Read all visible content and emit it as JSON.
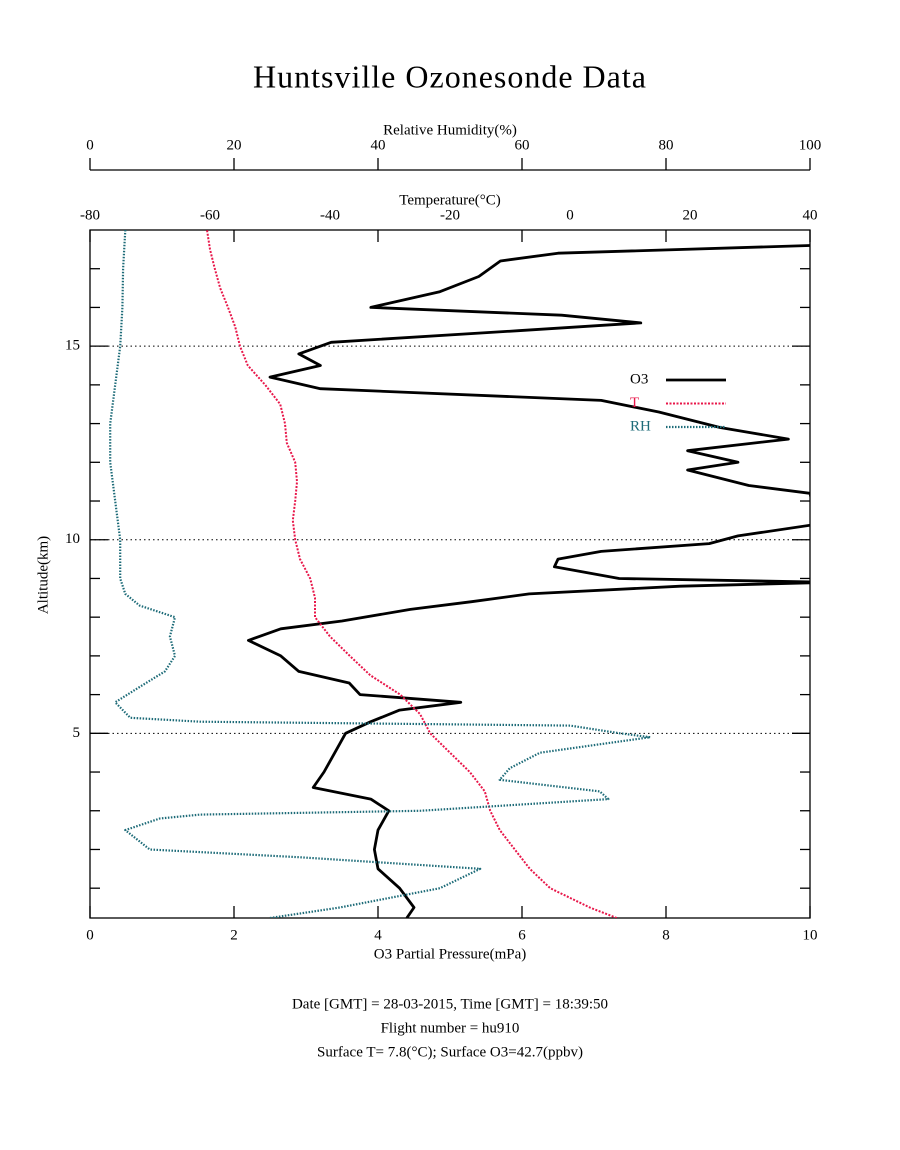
{
  "chart_data": {
    "type": "line",
    "title": "Huntsville Ozonesonde Data",
    "xlabel": "O3 Partial Pressure(mPa)",
    "x2label": "Temperature(°C)",
    "x3label": "Relative Humidity(%)",
    "ylabel": "Altitude(km)",
    "xlim": [
      0,
      10
    ],
    "xticks": [
      0,
      2,
      4,
      6,
      8,
      10
    ],
    "x2lim": [
      -80,
      40
    ],
    "x2ticks": [
      -80,
      -60,
      -40,
      -20,
      0,
      20,
      40
    ],
    "x3lim": [
      0,
      100
    ],
    "x3ticks": [
      0,
      20,
      40,
      60,
      80,
      100
    ],
    "ylim": [
      0.23,
      18
    ],
    "yticks": [
      5,
      10,
      15
    ],
    "yminorticks": [
      1,
      2,
      3,
      4,
      6,
      7,
      8,
      9,
      11,
      12,
      13,
      14,
      16,
      17
    ],
    "grid": true,
    "legend": "right",
    "series": [
      {
        "name": "O3",
        "color": "#000000",
        "axis": "x",
        "altitude": [
          0.23,
          0.5,
          1.0,
          1.5,
          2.0,
          2.5,
          3.0,
          3.3,
          3.6,
          4.0,
          4.5,
          5.0,
          5.3,
          5.6,
          5.8,
          6.0,
          6.3,
          6.6,
          7.0,
          7.4,
          7.7,
          7.9,
          8.2,
          8.4,
          8.6,
          8.8,
          8.9,
          9.0,
          9.3,
          9.5,
          9.7,
          9.9,
          10.1,
          10.4,
          11.2,
          11.4,
          11.8,
          12.0,
          12.3,
          12.6,
          12.9,
          13.3,
          13.6,
          13.9,
          14.2,
          14.5,
          14.8,
          15.1,
          15.4,
          15.6,
          15.8,
          16.0,
          16.4,
          16.8,
          17.2,
          17.4,
          17.6
        ],
        "values": [
          4.4,
          4.5,
          4.3,
          4.0,
          3.95,
          4.0,
          4.15,
          3.9,
          3.1,
          3.25,
          3.4,
          3.55,
          3.9,
          4.3,
          5.15,
          3.75,
          3.6,
          2.9,
          2.65,
          2.2,
          2.65,
          3.5,
          4.45,
          5.3,
          6.1,
          8.2,
          10.3,
          7.35,
          6.45,
          6.5,
          7.1,
          8.6,
          9.0,
          10.1,
          10.0,
          9.15,
          8.3,
          9.0,
          8.3,
          9.7,
          8.75,
          7.9,
          7.1,
          3.2,
          2.5,
          3.2,
          2.9,
          3.35,
          5.95,
          7.65,
          6.55,
          3.9,
          4.85,
          5.4,
          5.7,
          6.5,
          10.0
        ]
      },
      {
        "name": "T",
        "color": "#e8174a",
        "axis": "x2",
        "altitude": [
          0.23,
          0.5,
          1.0,
          1.5,
          2.0,
          2.5,
          3.0,
          3.5,
          4.0,
          4.5,
          5.0,
          5.5,
          6.0,
          6.5,
          7.0,
          7.5,
          8.0,
          8.5,
          9.0,
          9.5,
          10.0,
          10.5,
          11.0,
          11.5,
          12.0,
          12.5,
          13.0,
          13.5,
          14.0,
          14.5,
          15.0,
          15.5,
          16.0,
          16.5,
          17.0,
          17.5,
          18.0
        ],
        "values": [
          7.8,
          3.3,
          -3.3,
          -6.7,
          -9.2,
          -11.7,
          -13.3,
          -14.2,
          -16.7,
          -20,
          -23.3,
          -25,
          -28.3,
          -33.3,
          -36.7,
          -40,
          -42.5,
          -42.5,
          -43.3,
          -45,
          -45.8,
          -46.2,
          -45.8,
          -45.5,
          -45.8,
          -47.2,
          -47.5,
          -48.3,
          -50.8,
          -53.7,
          -55,
          -55.8,
          -57,
          -58.3,
          -59.2,
          -60,
          -60.5
        ]
      },
      {
        "name": "RH",
        "color": "#1d6b78",
        "axis": "x3",
        "altitude": [
          0.23,
          0.5,
          1.0,
          1.5,
          1.8,
          2.0,
          2.5,
          2.8,
          2.9,
          3.0,
          3.3,
          3.5,
          3.8,
          4.1,
          4.5,
          4.9,
          5.0,
          5.2,
          5.3,
          5.4,
          5.8,
          6.2,
          6.6,
          7.0,
          7.5,
          8.0,
          8.3,
          8.6,
          9.0,
          10.0,
          11.0,
          12.0,
          13.0,
          14.0,
          15.0,
          16.0,
          17.0,
          18.0
        ],
        "values": [
          25,
          34.7,
          48.6,
          54.2,
          29,
          8.3,
          4.9,
          9.7,
          15.3,
          45.8,
          72,
          70.8,
          56.9,
          58.3,
          62.5,
          77.8,
          73.6,
          66.7,
          15.3,
          5.6,
          3.5,
          6.9,
          10.4,
          11.8,
          11.1,
          11.8,
          6.9,
          4.9,
          4.2,
          4.2,
          3.5,
          2.8,
          2.8,
          3.5,
          4.2,
          4.5,
          4.6,
          4.9
        ]
      }
    ],
    "notes": [
      "Date [GMT] = 28-03-2015,  Time [GMT] = 18:39:50",
      "Flight number = hu910",
      "Surface T= 7.8(°C); Surface O3=42.7(ppbv)"
    ]
  }
}
